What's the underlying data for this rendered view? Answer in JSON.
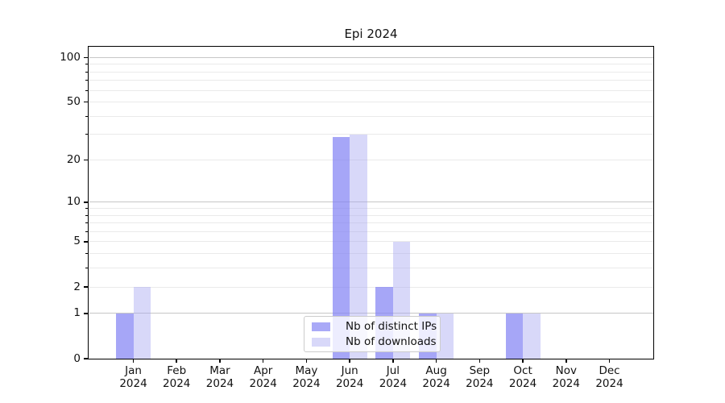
{
  "title": "Epi 2024",
  "chart_data": {
    "type": "bar",
    "title": "Epi 2024",
    "categories": [
      "Jan",
      "Feb",
      "Mar",
      "Apr",
      "May",
      "Jun",
      "Jul",
      "Aug",
      "Sep",
      "Oct",
      "Nov",
      "Dec"
    ],
    "xlabel_year_line": "2024",
    "series": [
      {
        "name": "Nb of distinct IPs",
        "color": "#a9a9f7",
        "fill_rgba": "rgba(132,132,244,0.72)",
        "values": [
          1,
          0,
          0,
          0,
          0,
          29,
          2,
          1,
          0,
          1,
          0,
          0
        ]
      },
      {
        "name": "Nb of downloads",
        "color": "#d8d8f9",
        "fill_rgba": "rgba(166,166,241,0.44)",
        "values": [
          2,
          0,
          0,
          0,
          0,
          30,
          5,
          1,
          0,
          1,
          0,
          0
        ]
      }
    ],
    "yscale": "log1p",
    "ylim": [
      0,
      118
    ],
    "ytick_labels": [
      "0",
      "1",
      "2",
      "5",
      "10",
      "20",
      "50",
      "100"
    ],
    "ytick_values": [
      0,
      1,
      2,
      5,
      10,
      20,
      50,
      100
    ],
    "minor_gridlines": [
      2,
      3,
      4,
      5,
      6,
      7,
      8,
      9,
      20,
      30,
      40,
      50,
      60,
      70,
      80,
      90
    ],
    "major_gridlines": [
      1,
      10,
      100
    ],
    "grid": true,
    "legend_position": "inside bottom-center"
  },
  "colors": {
    "background": "#ffffff",
    "grid_minor": "#eaeaea",
    "grid_major": "#c6c6c6",
    "axis": "#000000",
    "text": "#111111",
    "legend_border": "#cccccc",
    "legend_background": "rgba(255,255,255,0.8)"
  }
}
